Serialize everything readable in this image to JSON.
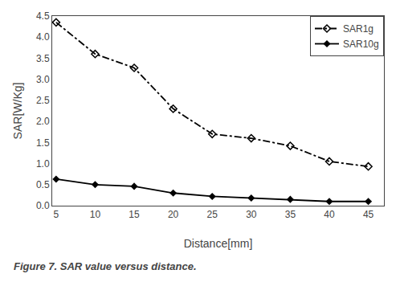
{
  "chart_data": {
    "type": "line",
    "x": [
      5,
      10,
      15,
      20,
      25,
      30,
      35,
      40,
      45
    ],
    "series": [
      {
        "name": "SAR1g",
        "color": "#000000",
        "line_style": "dashdot",
        "marker": "diamond-open",
        "values": [
          4.35,
          3.6,
          3.27,
          2.3,
          1.7,
          1.6,
          1.42,
          1.05,
          0.93
        ]
      },
      {
        "name": "SAR10g",
        "color": "#000000",
        "line_style": "solid",
        "marker": "diamond",
        "values": [
          0.63,
          0.5,
          0.46,
          0.3,
          0.22,
          0.18,
          0.15,
          0.1,
          0.1
        ]
      }
    ],
    "xlabel": "Distance[mm]",
    "ylabel": "SAR[W/Kg]",
    "xlim": [
      4.5,
      47
    ],
    "ylim": [
      0,
      4.5
    ],
    "xticks": [
      5,
      10,
      15,
      20,
      25,
      30,
      35,
      40,
      45
    ],
    "yticks": [
      {
        "value": 0,
        "label": "0.0"
      },
      0.5,
      {
        "value": 1.0,
        "label": "1.0"
      },
      1.5,
      {
        "value": 2.0,
        "label": "2.0"
      },
      2.5,
      {
        "value": 3.0,
        "label": "3.0"
      },
      3.5,
      {
        "value": 4.0,
        "label": "4.0"
      },
      4.5
    ],
    "legend": "upper right",
    "grid": false,
    "annotations": [
      "Figure 7. SAR value versus distance."
    ]
  }
}
